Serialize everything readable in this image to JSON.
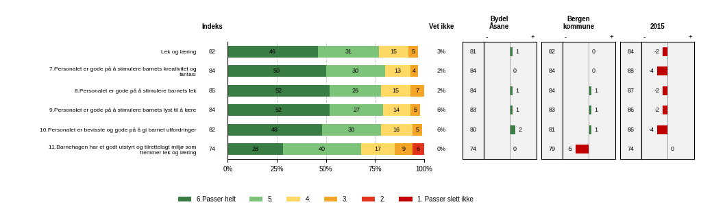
{
  "chart_data": {
    "type": "bar",
    "orientation": "horizontal",
    "stacked": true,
    "data_labels": true,
    "grid": true,
    "legend": "lower center",
    "categories": [
      "Lek og læring",
      "7.Personalet er gode på å stimulere barnets kreativitet og\nfantasi",
      "8.Personalet er gode på å stimulere barnets lek",
      "9.Personalet er gode på å stimulere barnets lyst til å lære",
      "10.Personalet er bevisste og gode på å gi barnet utfordringer",
      "11.Barnehagen har et godt utstyrt og tilrettelagt miljø som\nfremmer lek og læring"
    ],
    "series": [
      {
        "name": "6.Passer helt",
        "color": "#3a7d44",
        "values": [
          46,
          50,
          52,
          52,
          48,
          28
        ]
      },
      {
        "name": "5.",
        "color": "#7dc47a",
        "values": [
          31,
          30,
          26,
          27,
          30,
          40
        ]
      },
      {
        "name": "4.",
        "color": "#ffd966",
        "values": [
          15,
          13,
          15,
          14,
          16,
          17
        ]
      },
      {
        "name": "3.",
        "color": "#f4a427",
        "values": [
          5,
          4,
          7,
          5,
          5,
          9
        ]
      },
      {
        "name": "2.",
        "color": "#e2341d",
        "values": [
          0,
          0,
          0,
          0,
          0,
          6
        ]
      },
      {
        "name": "1. Passer slett ikke",
        "color": "#c00000",
        "values": [
          null,
          null,
          null,
          null,
          null,
          null
        ]
      }
    ],
    "xlim": [
      0,
      100
    ],
    "xticks": [
      {
        "value": 0,
        "label": "0%"
      },
      {
        "value": 25,
        "label": "25%"
      },
      {
        "value": 50,
        "label": "50%"
      },
      {
        "value": 75,
        "label": "75%"
      },
      {
        "value": 100,
        "label": "100%"
      }
    ],
    "index_column": {
      "title": "Indeks",
      "values": [
        82,
        84,
        85,
        84,
        82,
        74
      ]
    },
    "dont_know_column": {
      "title": "Vet ikke",
      "values": [
        3,
        2,
        2,
        6,
        6,
        0
      ],
      "value_labels": [
        "3%",
        "2%",
        "2%",
        "6%",
        "6%",
        "0%"
      ]
    },
    "diff_signs": [
      "-",
      "+"
    ],
    "positive_color": "#3a7d44",
    "negative_color": "#c00000",
    "comparisons": [
      {
        "title": "Bydel\nÅsane",
        "values": [
          81,
          84,
          84,
          83,
          80,
          74
        ],
        "diffs": [
          1,
          0,
          1,
          1,
          2,
          0
        ],
        "xlim": [
          -10,
          10
        ]
      },
      {
        "title": "Bergen\nkommune",
        "values": [
          82,
          84,
          84,
          83,
          81,
          79
        ],
        "diffs": [
          0,
          0,
          1,
          1,
          1,
          -5
        ],
        "xlim": [
          -10,
          10
        ]
      },
      {
        "title": "2015",
        "values": [
          84,
          88,
          87,
          86,
          86,
          74
        ],
        "diffs": [
          -2,
          -4,
          -2,
          -2,
          -4,
          0
        ],
        "xlim": [
          -10,
          10
        ]
      }
    ]
  }
}
